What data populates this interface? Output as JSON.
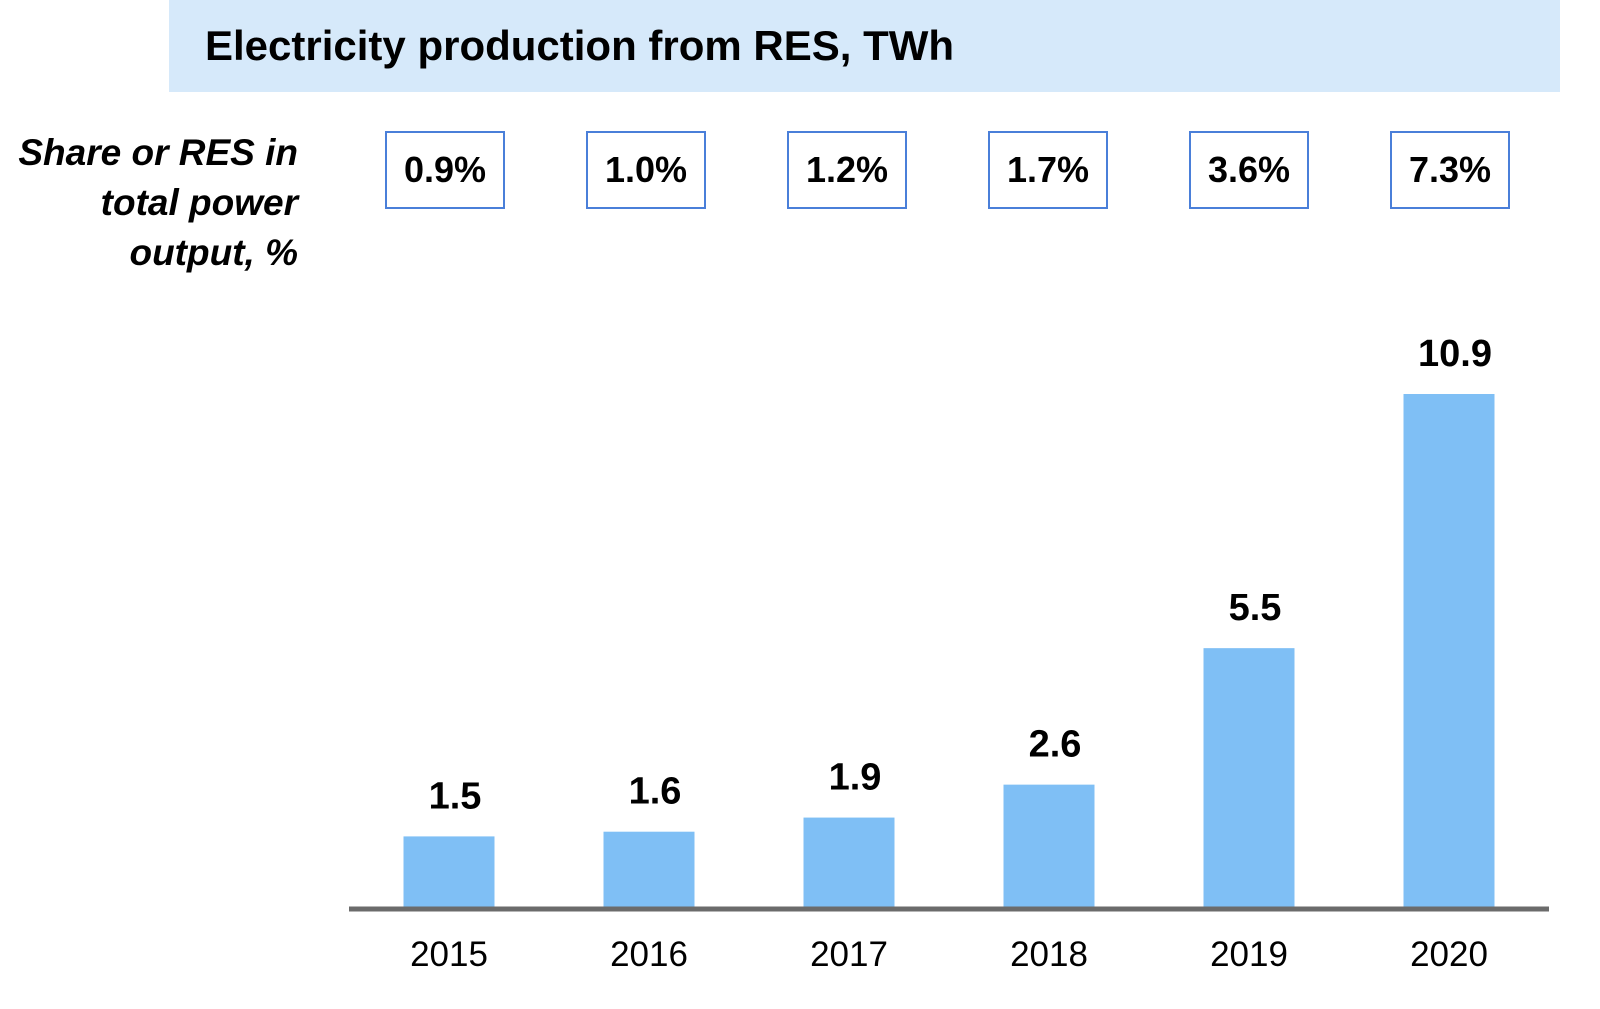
{
  "title": "Electricity production from RES, TWh",
  "share_label": "Share or RES in total power output, %",
  "share_values": [
    "0.9%",
    "1.0%",
    "1.2%",
    "1.7%",
    "3.6%",
    "7.3%"
  ],
  "colors": {
    "bar": "#7fbff5",
    "title_band": "#d6e9fa",
    "axis": "#6b6b6b",
    "box_border": "#4a7fd9"
  },
  "chart_data": {
    "type": "bar",
    "categories": [
      "2015",
      "2016",
      "2017",
      "2018",
      "2019",
      "2020"
    ],
    "values": [
      1.5,
      1.6,
      1.9,
      2.6,
      5.5,
      10.9
    ],
    "data_labels": [
      "1.5",
      "1.6",
      "1.9",
      "2.6",
      "5.5",
      "10.9"
    ],
    "title": "Electricity production from RES, TWh",
    "xlabel": "",
    "ylabel": "",
    "ylim": [
      0,
      10.9
    ],
    "grid": false,
    "legend": "none"
  }
}
